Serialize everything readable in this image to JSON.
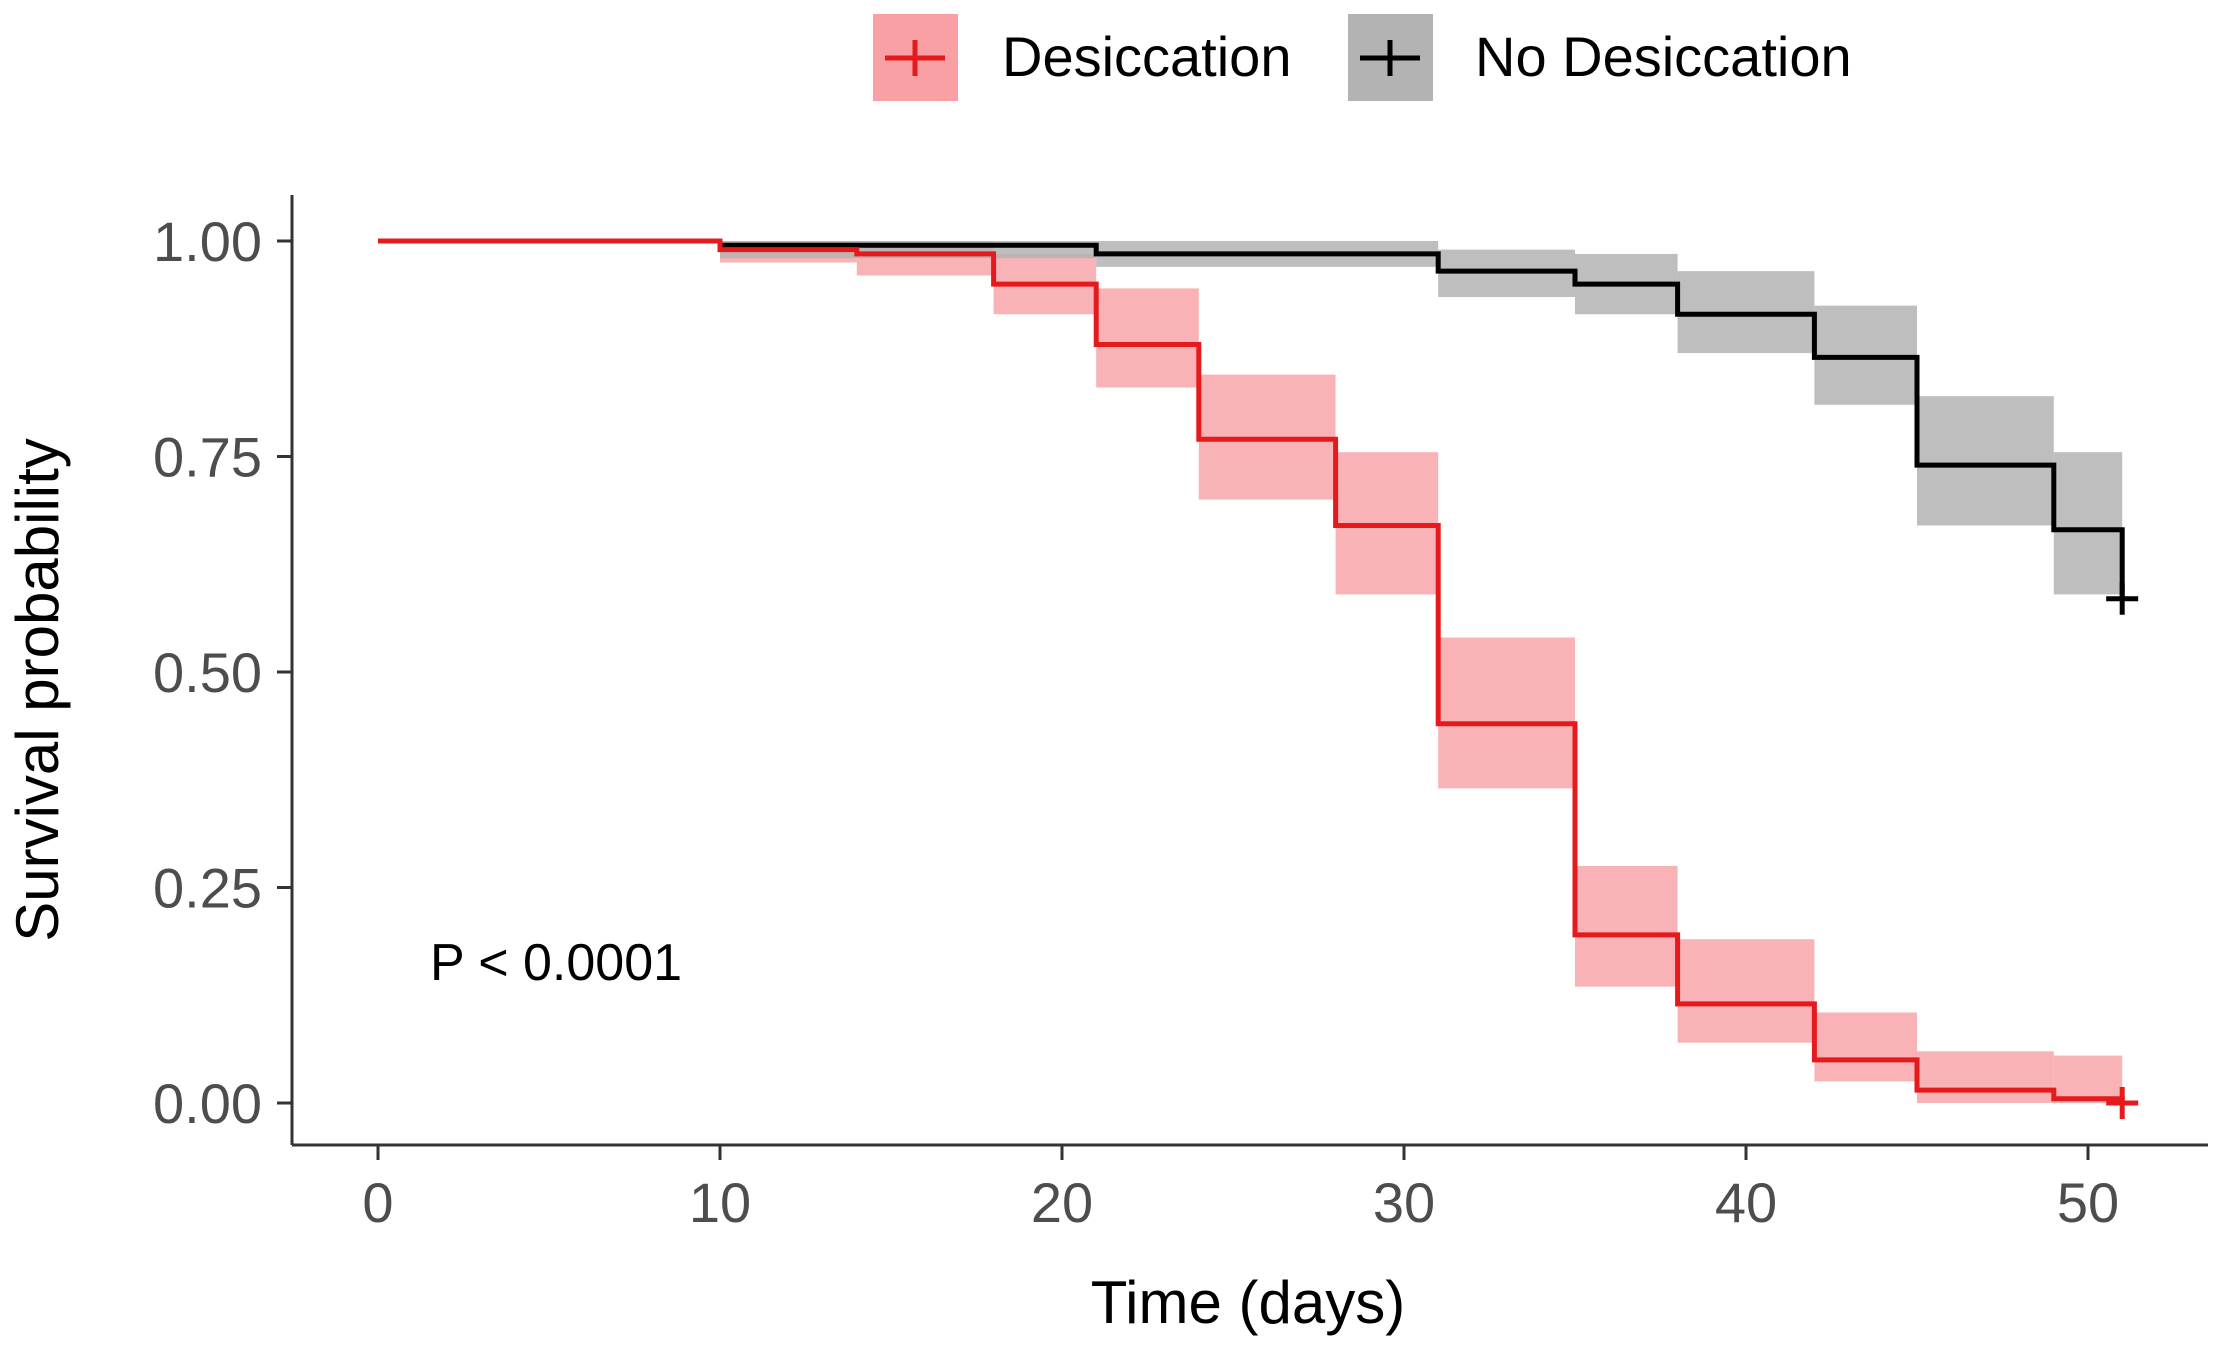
{
  "chart_data": {
    "type": "line",
    "subtype": "kaplan-meier step survival curve with confidence bands",
    "title": "",
    "xlabel": "Time (days)",
    "ylabel": "Survival probability",
    "xlim": [
      0,
      51
    ],
    "ylim": [
      0,
      1
    ],
    "x_ticks": [
      0,
      10,
      20,
      30,
      40,
      50
    ],
    "x_tick_labels": [
      "0",
      "10",
      "20",
      "30",
      "40",
      "50"
    ],
    "y_ticks": [
      0,
      0.25,
      0.5,
      0.75,
      1
    ],
    "y_tick_labels": [
      "0.00",
      "0.25",
      "0.50",
      "0.75",
      "1.00"
    ],
    "grid": false,
    "legend_position": "top",
    "annotation": "P < 0.0001",
    "series": [
      {
        "name": "Desiccation",
        "color": "#e41a1c",
        "band_color": "#f8a0a4",
        "steps": [
          {
            "x": 0,
            "y": 1.0,
            "lower": 1.0,
            "upper": 1.0
          },
          {
            "x": 10,
            "y": 0.99,
            "lower": 0.975,
            "upper": 1.0
          },
          {
            "x": 14,
            "y": 0.985,
            "lower": 0.96,
            "upper": 1.0
          },
          {
            "x": 18,
            "y": 0.95,
            "lower": 0.915,
            "upper": 0.985
          },
          {
            "x": 21,
            "y": 0.88,
            "lower": 0.83,
            "upper": 0.945
          },
          {
            "x": 24,
            "y": 0.77,
            "lower": 0.7,
            "upper": 0.845
          },
          {
            "x": 28,
            "y": 0.67,
            "lower": 0.59,
            "upper": 0.755
          },
          {
            "x": 31,
            "y": 0.44,
            "lower": 0.365,
            "upper": 0.54
          },
          {
            "x": 35,
            "y": 0.195,
            "lower": 0.135,
            "upper": 0.275
          },
          {
            "x": 38,
            "y": 0.115,
            "lower": 0.07,
            "upper": 0.19
          },
          {
            "x": 42,
            "y": 0.05,
            "lower": 0.025,
            "upper": 0.105
          },
          {
            "x": 45,
            "y": 0.015,
            "lower": 0.0,
            "upper": 0.06
          },
          {
            "x": 49,
            "y": 0.005,
            "lower": 0.0,
            "upper": 0.055
          },
          {
            "x": 51,
            "y": 0.0,
            "lower": 0.0,
            "upper": 0.0
          }
        ],
        "censor_x": 51,
        "censor_y": 0.0
      },
      {
        "name": "No Desiccation",
        "color": "#000000",
        "band_color": "#b3b3b3",
        "steps": [
          {
            "x": 0,
            "y": 1.0,
            "lower": 1.0,
            "upper": 1.0
          },
          {
            "x": 10,
            "y": 0.995,
            "lower": 0.98,
            "upper": 1.0
          },
          {
            "x": 21,
            "y": 0.985,
            "lower": 0.97,
            "upper": 1.0
          },
          {
            "x": 31,
            "y": 0.965,
            "lower": 0.935,
            "upper": 0.99
          },
          {
            "x": 35,
            "y": 0.95,
            "lower": 0.915,
            "upper": 0.985
          },
          {
            "x": 38,
            "y": 0.915,
            "lower": 0.87,
            "upper": 0.965
          },
          {
            "x": 42,
            "y": 0.865,
            "lower": 0.81,
            "upper": 0.925
          },
          {
            "x": 45,
            "y": 0.74,
            "lower": 0.67,
            "upper": 0.82
          },
          {
            "x": 49,
            "y": 0.665,
            "lower": 0.59,
            "upper": 0.755
          },
          {
            "x": 51,
            "y": 0.585,
            "lower": 0.585,
            "upper": 0.585
          }
        ],
        "censor_x": 51,
        "censor_y": 0.585
      }
    ]
  }
}
